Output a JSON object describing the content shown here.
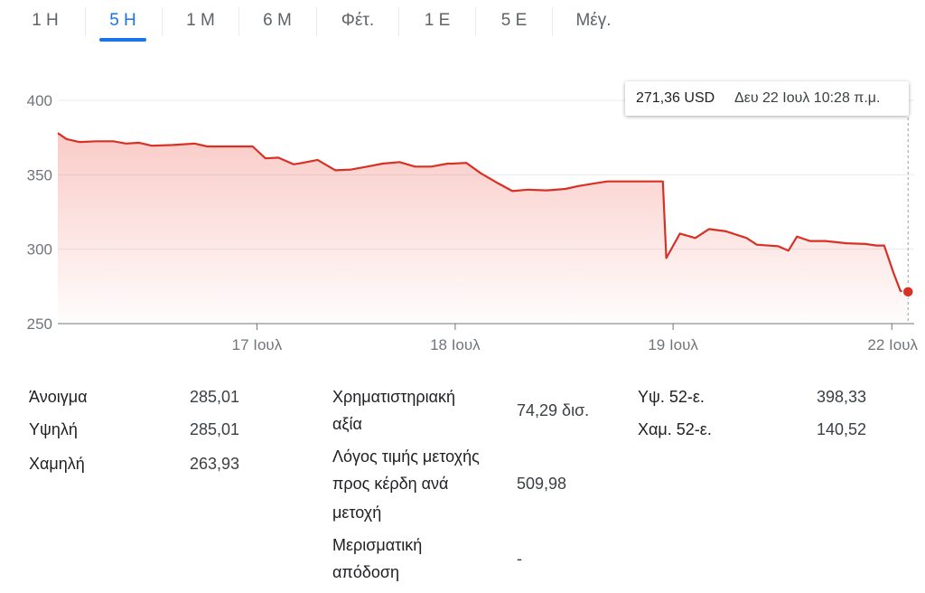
{
  "tabs": [
    {
      "label": "1 Η",
      "active": false
    },
    {
      "label": "5 Η",
      "active": true
    },
    {
      "label": "1 Μ",
      "active": false
    },
    {
      "label": "6 Μ",
      "active": false
    },
    {
      "label": "Φέτ.",
      "active": false
    },
    {
      "label": "1 Ε",
      "active": false
    },
    {
      "label": "5 Ε",
      "active": false
    },
    {
      "label": "Μέγ.",
      "active": false
    }
  ],
  "tooltip": {
    "price": "271,36 USD",
    "when": "Δευ 22 Ιουλ 10:28 π.μ."
  },
  "chart_data": {
    "type": "area",
    "y_ticks": [
      250,
      300,
      350,
      400
    ],
    "ylim": [
      250,
      400
    ],
    "grid": true,
    "x_labels": [
      "17 Ιουλ",
      "18 Ιουλ",
      "19 Ιουλ",
      "22 Ιουλ"
    ],
    "x_label_positions": [
      0.233,
      0.465,
      0.72,
      0.976
    ],
    "line_color": "#d93025",
    "fill_color": "#f28b82",
    "series": [
      {
        "x": [
          0.0,
          0.01,
          0.025,
          0.045,
          0.065,
          0.08,
          0.095,
          0.11,
          0.135,
          0.16,
          0.175,
          0.2,
          0.225,
          0.228,
          0.243,
          0.258,
          0.276,
          0.286,
          0.304,
          0.325,
          0.343,
          0.362,
          0.38,
          0.4,
          0.418,
          0.437,
          0.456,
          0.462,
          0.478,
          0.495,
          0.513,
          0.532,
          0.55,
          0.572,
          0.594,
          0.61,
          0.626,
          0.643,
          0.66,
          0.678,
          0.708,
          0.712,
          0.728,
          0.746,
          0.762,
          0.782,
          0.806,
          0.818,
          0.843,
          0.855,
          0.865,
          0.88,
          0.898,
          0.923,
          0.945,
          0.958,
          0.967,
          0.978,
          0.986,
          0.995
        ],
        "values": [
          378,
          374,
          372,
          372.5,
          372.5,
          371,
          371.5,
          369.5,
          370,
          371,
          369,
          369,
          369,
          369,
          361,
          361.5,
          357,
          358,
          360,
          353,
          353.5,
          355.5,
          357.5,
          358.5,
          355.5,
          355.5,
          357.5,
          357.5,
          358,
          351,
          345,
          339,
          340,
          339.5,
          340.5,
          342.5,
          344,
          345.5,
          345.5,
          345.5,
          345.5,
          294,
          310.5,
          307.5,
          313.5,
          312,
          307.5,
          303,
          302,
          299,
          308.5,
          305.5,
          305.5,
          304,
          303.5,
          302.5,
          302.5,
          284,
          272,
          271.36
        ]
      }
    ],
    "last_point": {
      "value": 271.36
    }
  },
  "stats": {
    "col1": [
      {
        "label": "Άνοιγμα",
        "value": "285,01"
      },
      {
        "label": "Υψηλή",
        "value": "285,01"
      },
      {
        "label": "Χαμηλή",
        "value": "263,93"
      }
    ],
    "col2": [
      {
        "label_lines": [
          "Χρηματιστηριακή",
          "αξία"
        ],
        "value": "74,29 δισ."
      },
      {
        "label_lines": [
          "Λόγος τιμής μετοχής",
          "προς κέρδη ανά",
          "μετοχή"
        ],
        "value": "509,98"
      },
      {
        "label_lines": [
          "Μερισματική",
          "απόδοση"
        ],
        "value": "-"
      }
    ],
    "col3": [
      {
        "label": "Υψ. 52-ε.",
        "value": "398,33"
      },
      {
        "label": "Χαμ. 52-ε.",
        "value": "140,52"
      }
    ]
  }
}
